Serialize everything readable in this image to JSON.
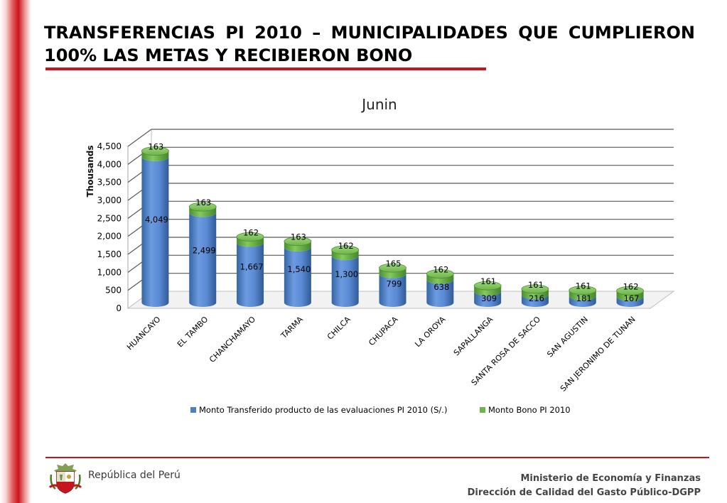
{
  "slide": {
    "title": "TRANSFERENCIAS PI 2010 – MUNICIPALIDADES QUE CUMPLIERON 100% LAS METAS Y RECIBIERON BONO"
  },
  "footer": {
    "republica": "República del Perú",
    "ministerio": "Ministerio de Economía y Finanzas",
    "direccion": "Dirección de Calidad del Gasto Público-DGPP"
  },
  "colors": {
    "brand_red": "#c4161c",
    "series_transferido": "#4f81bd",
    "series_bono": "#6fb34b"
  },
  "chart_data": {
    "type": "bar",
    "stacked": true,
    "style": "3d-cylinder",
    "title": "Junin",
    "ylabel": "Thousands",
    "xlabel": "",
    "ylim": [
      0,
      4500
    ],
    "yticks": [
      "0",
      "500",
      "1,000",
      "1,500",
      "2,000",
      "2,500",
      "3,000",
      "3,500",
      "4,000",
      "4,500"
    ],
    "ytick_values": [
      0,
      500,
      1000,
      1500,
      2000,
      2500,
      3000,
      3500,
      4000,
      4500
    ],
    "grid": true,
    "legend_position": "bottom",
    "categories": [
      "HUANCAYO",
      "EL TAMBO",
      "CHANCHAMAYO",
      "TARMA",
      "CHILCA",
      "CHUPACA",
      "LA OROYA",
      "SAPALLANGA",
      "SANTA ROSA DE SACCO",
      "SAN AGUSTIN",
      "SAN JERONIMO DE TUNAN"
    ],
    "series": [
      {
        "name": "Monto Transferido producto de las evaluaciones PI 2010 (S/.)",
        "color": "#4f81bd",
        "values": [
          4049,
          2499,
          1667,
          1540,
          1300,
          799,
          638,
          309,
          216,
          181,
          167
        ],
        "labels": [
          "4,049",
          "2,499",
          "1,667",
          "1,540",
          "1,300",
          "799",
          "638",
          "309",
          "216",
          "181",
          "167"
        ]
      },
      {
        "name": "Monto Bono PI 2010",
        "color": "#6fb34b",
        "values": [
          163,
          163,
          162,
          163,
          162,
          165,
          162,
          161,
          161,
          161,
          162
        ],
        "labels": [
          "163",
          "163",
          "162",
          "163",
          "162",
          "165",
          "162",
          "161",
          "161",
          "161",
          "162"
        ]
      }
    ]
  }
}
